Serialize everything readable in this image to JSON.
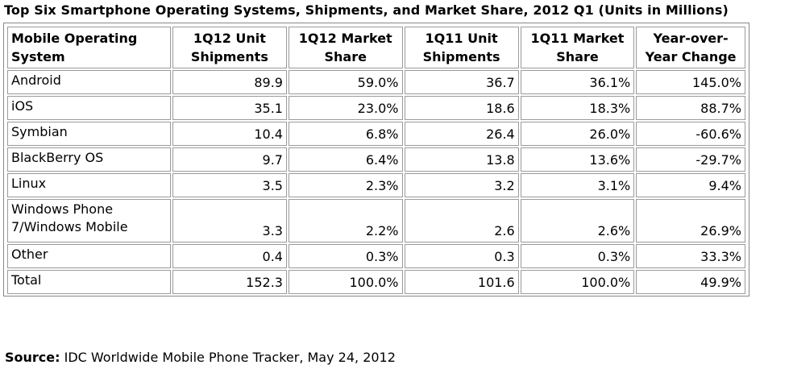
{
  "title": "Top Six Smartphone Operating Systems, Shipments, and Market Share, 2012 Q1 (Units in Millions)",
  "table": {
    "headers": [
      [
        "Mobile Operating",
        "System"
      ],
      [
        "1Q12 Unit",
        "Shipments"
      ],
      [
        "1Q12 Market",
        "Share"
      ],
      [
        "1Q11 Unit",
        "Shipments"
      ],
      [
        "1Q11 Market",
        "Share"
      ],
      [
        "Year-over-",
        "Year Change"
      ]
    ],
    "rows": [
      {
        "name": [
          "Android"
        ],
        "cells": [
          "89.9",
          "59.0%",
          "36.7",
          "36.1%",
          "145.0%"
        ]
      },
      {
        "name": [
          "iOS"
        ],
        "cells": [
          "35.1",
          "23.0%",
          "18.6",
          "18.3%",
          "88.7%"
        ]
      },
      {
        "name": [
          "Symbian"
        ],
        "cells": [
          "10.4",
          "6.8%",
          "26.4",
          "26.0%",
          "-60.6%"
        ]
      },
      {
        "name": [
          "BlackBerry OS"
        ],
        "cells": [
          "9.7",
          "6.4%",
          "13.8",
          "13.6%",
          "-29.7%"
        ]
      },
      {
        "name": [
          "Linux"
        ],
        "cells": [
          "3.5",
          "2.3%",
          "3.2",
          "3.1%",
          "9.4%"
        ]
      },
      {
        "name": [
          "Windows Phone",
          "7/Windows Mobile"
        ],
        "cells": [
          "3.3",
          "2.2%",
          "2.6",
          "2.6%",
          "26.9%"
        ]
      },
      {
        "name": [
          "Other"
        ],
        "cells": [
          "0.4",
          "0.3%",
          "0.3",
          "0.3%",
          "33.3%"
        ]
      },
      {
        "name": [
          "Total"
        ],
        "cells": [
          "152.3",
          "100.0%",
          "101.6",
          "100.0%",
          "49.9%"
        ]
      }
    ]
  },
  "source": {
    "label": "Source:",
    "text": "IDC Worldwide Mobile Phone Tracker, May 24, 2012"
  }
}
